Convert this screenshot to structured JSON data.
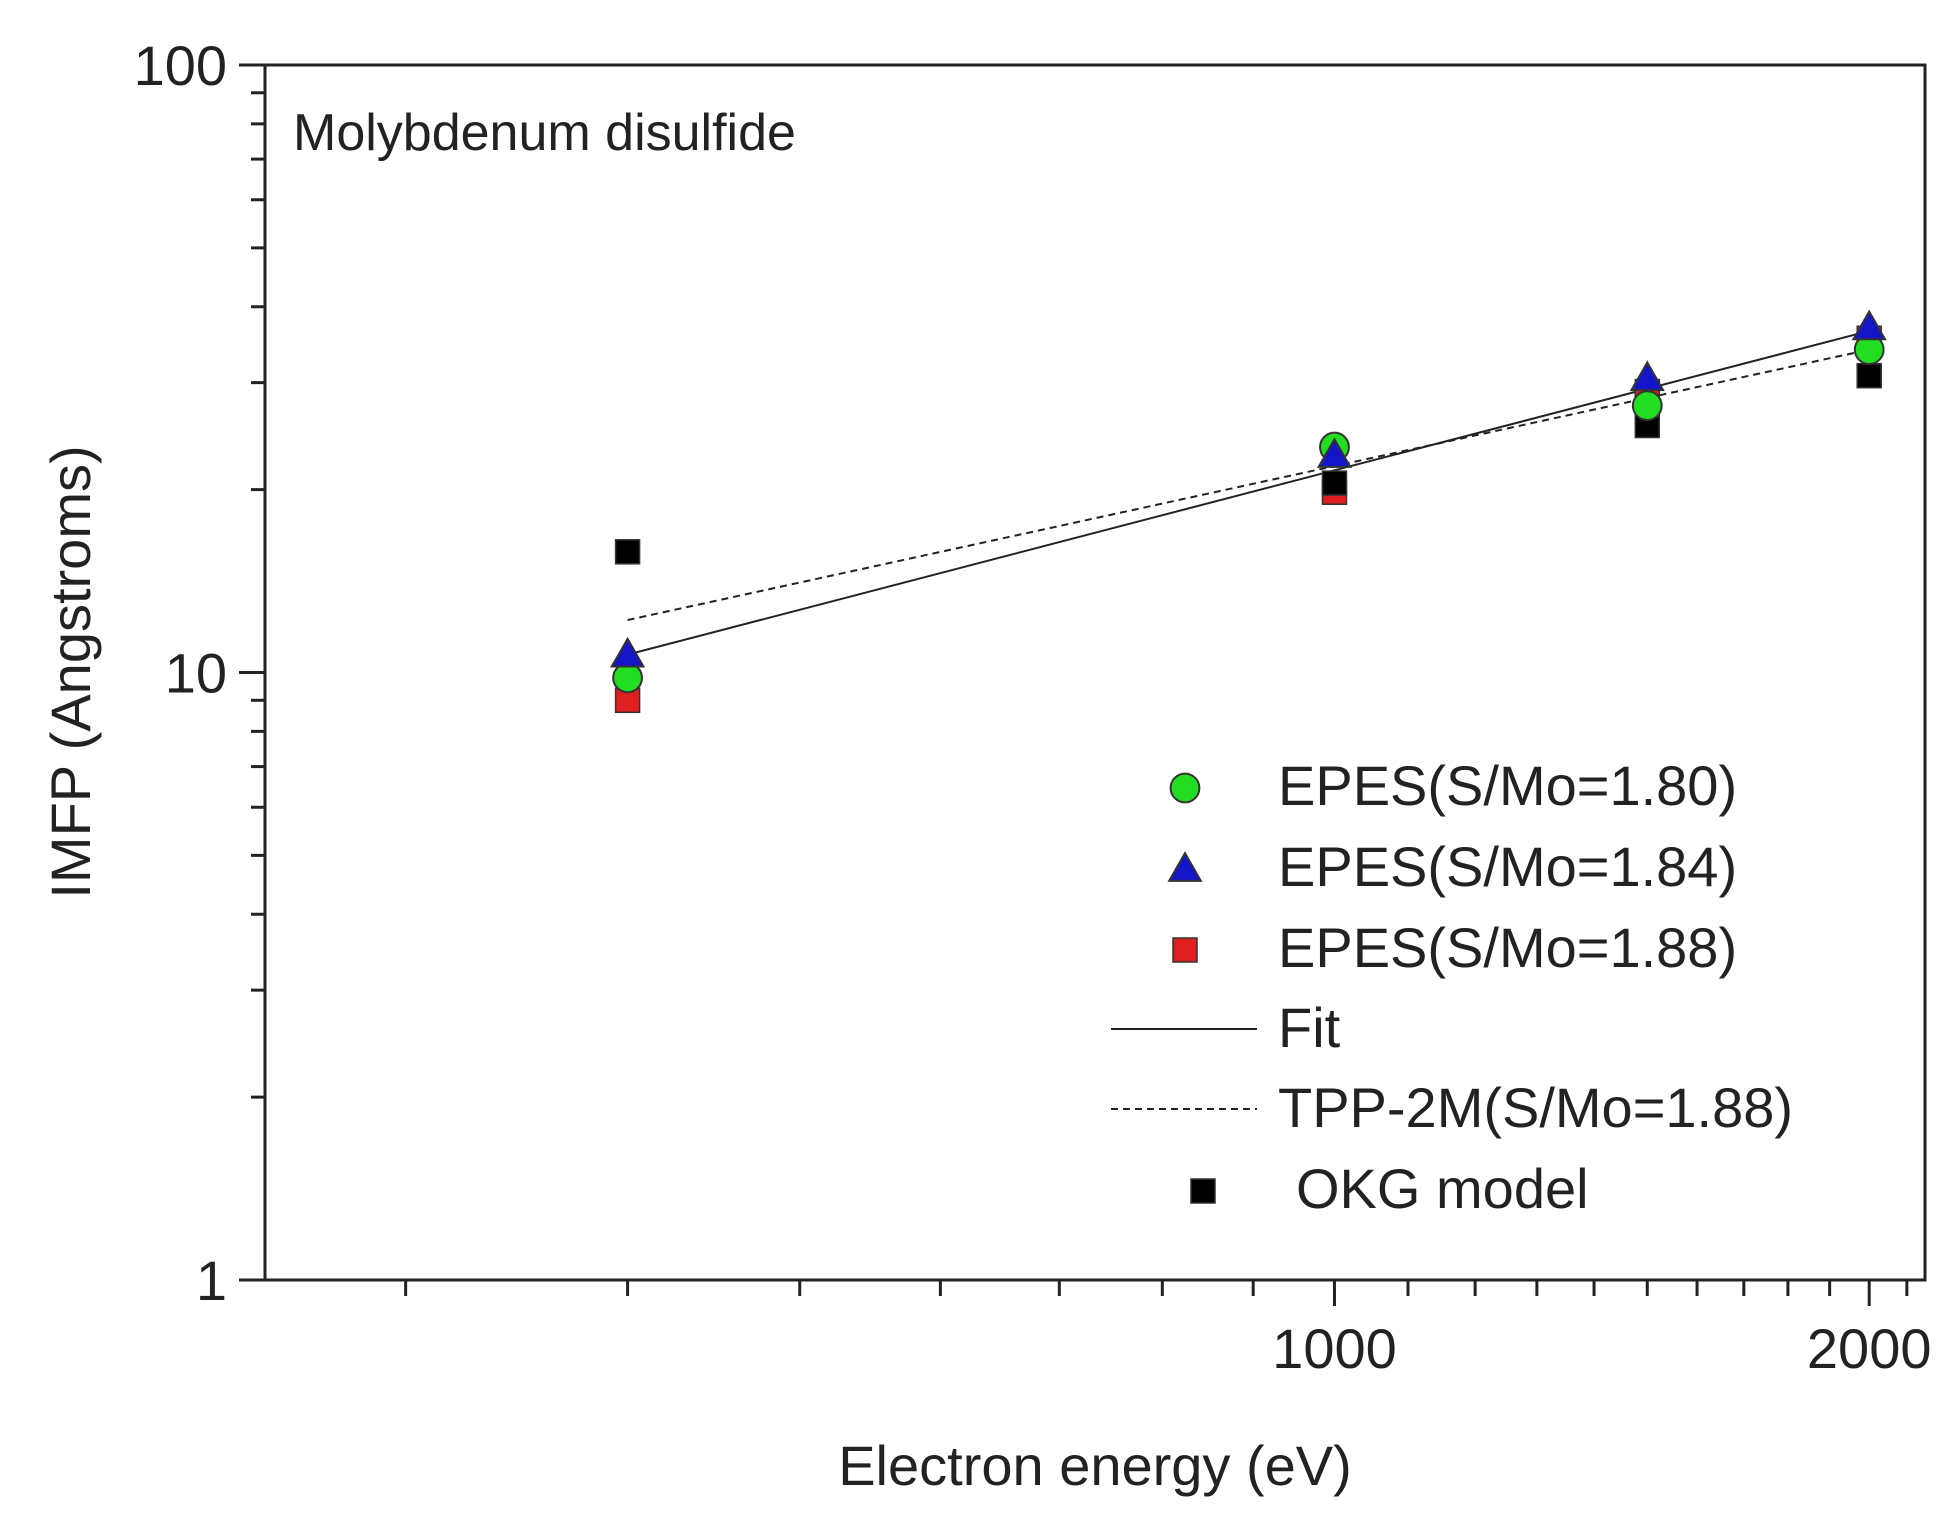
{
  "chart_data": {
    "type": "scatter",
    "title": "Molybdenum disulfide",
    "xlabel": "Electron energy (eV)",
    "ylabel": "IMFP (Angstroms)",
    "xscale": "log",
    "yscale": "log",
    "xlim": [
      250,
      2150
    ],
    "ylim": [
      1,
      100
    ],
    "xticks": [
      1000,
      2000
    ],
    "xtick_labels": [
      "1000",
      "2000"
    ],
    "yticks": [
      1,
      10,
      100
    ],
    "ytick_labels": [
      "1",
      "10",
      "100"
    ],
    "grid": false,
    "legend_position": "bottom-right",
    "series": [
      {
        "name": "EPES(S/Mo=1.80)",
        "kind": "marker",
        "marker": "circle",
        "color": "#22dd22",
        "x": [
          400,
          1000,
          1500,
          2000
        ],
        "y": [
          9.8,
          23.5,
          27.5,
          34.0
        ]
      },
      {
        "name": "EPES(S/Mo=1.84)",
        "kind": "marker",
        "marker": "triangle",
        "color": "#1414c8",
        "x": [
          400,
          1000,
          1500,
          2000
        ],
        "y": [
          10.7,
          22.8,
          30.5,
          37.0
        ]
      },
      {
        "name": "EPES(S/Mo=1.88)",
        "kind": "marker",
        "marker": "square",
        "color": "#dd1f1f",
        "x": [
          400,
          1000,
          1500,
          2000
        ],
        "y": [
          9.0,
          19.8,
          29.0,
          35.5
        ]
      },
      {
        "name": "Fit",
        "kind": "line",
        "style": "solid",
        "color": "#222222",
        "x": [
          400,
          2000
        ],
        "y": [
          10.7,
          36.5
        ]
      },
      {
        "name": "TPP-2M(S/Mo=1.88)",
        "kind": "line",
        "style": "dashed",
        "color": "#222222",
        "x": [
          400,
          2000
        ],
        "y": [
          12.2,
          34.0
        ]
      },
      {
        "name": "OKG model",
        "kind": "marker",
        "marker": "square",
        "color": "#000000",
        "x": [
          400,
          1000,
          1500,
          2000
        ],
        "y": [
          15.8,
          20.5,
          25.5,
          30.8
        ]
      }
    ]
  }
}
